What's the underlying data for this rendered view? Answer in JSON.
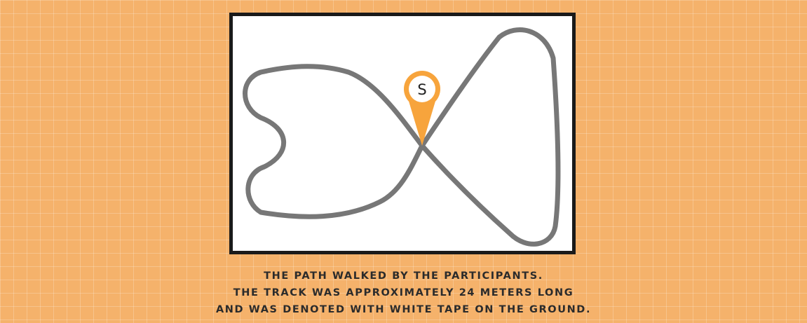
{
  "diagram": {
    "start_marker_label": "S",
    "colors": {
      "background": "#f5b26b",
      "frame_fill": "#ffffff",
      "frame_border": "#1a1a1a",
      "track": "#777777",
      "marker": "#f7a43c",
      "caption_text": "#2b2b2b"
    }
  },
  "caption": {
    "lines": [
      "THE PATH WALKED BY THE PARTICIPANTS.",
      "THE TRACK WAS APPROXIMATELY 24 METERS LONG",
      "AND WAS DENOTED WITH WHITE TAPE ON THE GROUND."
    ]
  }
}
